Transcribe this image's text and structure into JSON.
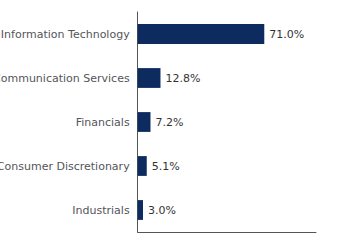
{
  "chart_data": {
    "type": "bar",
    "orientation": "horizontal",
    "categories": [
      "Information Technology",
      "Communication Services",
      "Financials",
      "Consumer Discretionary",
      "Industrials"
    ],
    "values": [
      71.0,
      12.8,
      7.2,
      5.1,
      3.0
    ],
    "value_labels": [
      "71.0%",
      "12.8%",
      "7.2%",
      "5.1%",
      "3.0%"
    ],
    "data_labels": true,
    "color": "#0d2b5e",
    "xlim": [
      0,
      100
    ],
    "tick_labels": "y",
    "grid": false
  }
}
